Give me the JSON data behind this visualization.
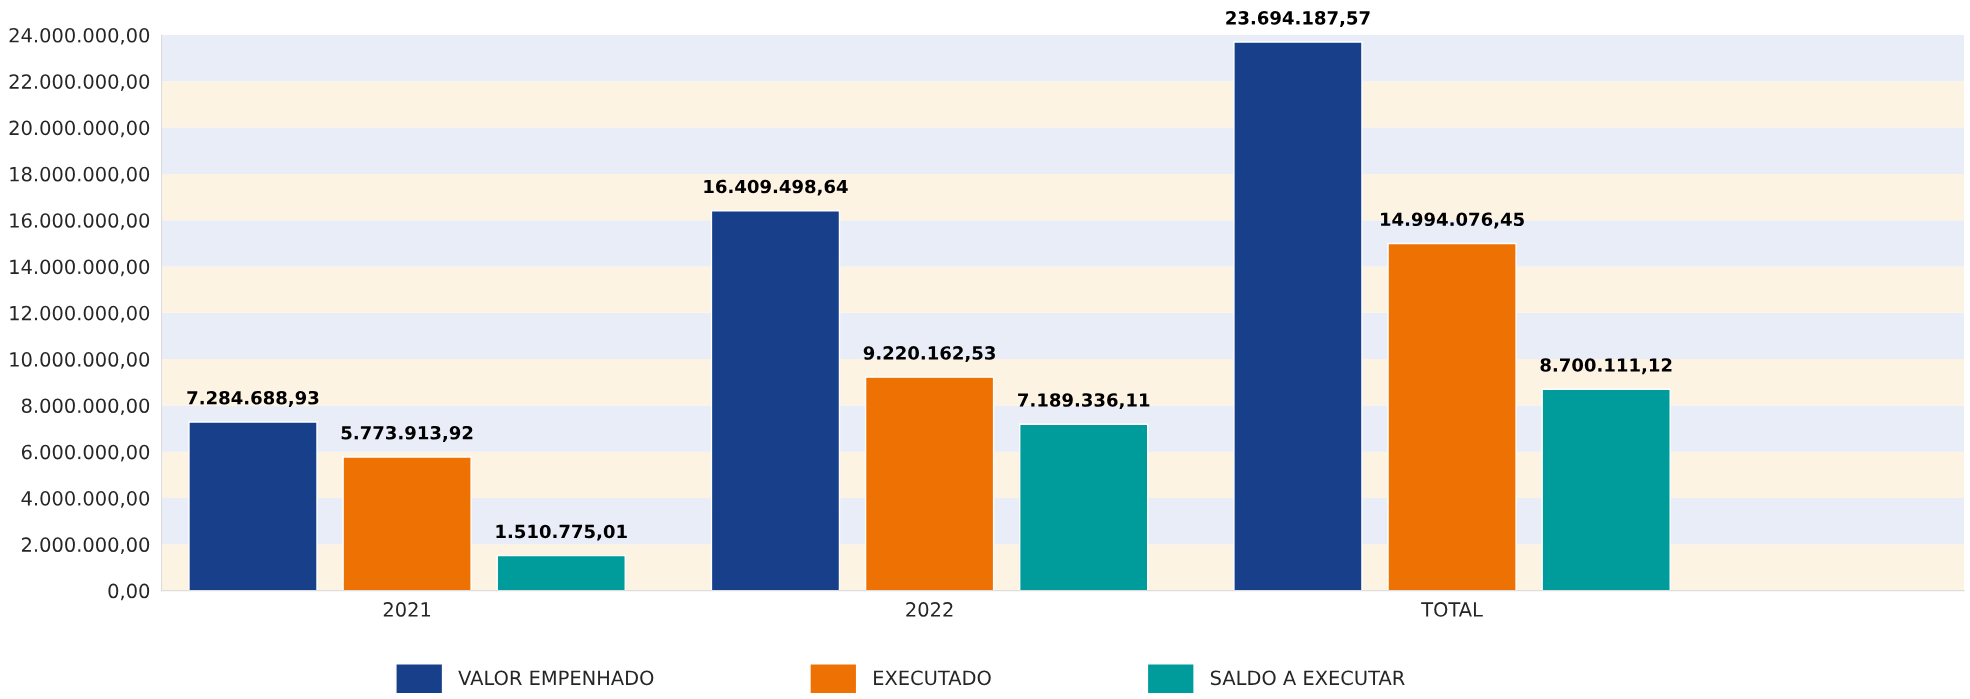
{
  "chart_data": {
    "type": "bar",
    "categories": [
      "2021",
      "2022",
      "TOTAL"
    ],
    "series": [
      {
        "name": "VALOR EMPENHADO",
        "color": "#173f8a",
        "values": [
          7284688.93,
          16409498.64,
          23694187.57
        ],
        "value_labels": [
          "7.284.688,93",
          "16.409.498,64",
          "23.694.187,57"
        ]
      },
      {
        "name": "EXECUTADO",
        "color": "#ee7203",
        "values": [
          5773913.92,
          9220162.53,
          14994076.45
        ],
        "value_labels": [
          "5.773.913,92",
          "9.220.162,53",
          "14.994.076,45"
        ]
      },
      {
        "name": "SALDO A EXECUTAR",
        "color": "#009b9b",
        "values": [
          1510775.01,
          7189336.11,
          8700111.12
        ],
        "value_labels": [
          "1.510.775,01",
          "7.189.336,11",
          "8.700.111,12"
        ]
      }
    ],
    "ylim": [
      0,
      24000000
    ],
    "yticks": [
      {
        "value": 0,
        "label": "0,00"
      },
      {
        "value": 2000000,
        "label": "2.000.000,00"
      },
      {
        "value": 4000000,
        "label": "4.000.000,00"
      },
      {
        "value": 6000000,
        "label": "6.000.000,00"
      },
      {
        "value": 8000000,
        "label": "8.000.000,00"
      },
      {
        "value": 10000000,
        "label": "10.000.000,00"
      },
      {
        "value": 12000000,
        "label": "12.000.000,00"
      },
      {
        "value": 14000000,
        "label": "14.000.000,00"
      },
      {
        "value": 16000000,
        "label": "16.000.000,00"
      },
      {
        "value": 18000000,
        "label": "18.000.000,00"
      },
      {
        "value": 20000000,
        "label": "20.000.000,00"
      },
      {
        "value": 22000000,
        "label": "22.000.000,00"
      },
      {
        "value": 24000000,
        "label": "24.000.000,00"
      }
    ],
    "bands": [
      {
        "axis": "y",
        "from": 0,
        "to": 2000000,
        "color": "#fdf3e3"
      },
      {
        "axis": "y",
        "from": 2000000,
        "to": 4000000,
        "color": "#e8edf8"
      },
      {
        "axis": "y",
        "from": 4000000,
        "to": 6000000,
        "color": "#fdf3e3"
      },
      {
        "axis": "y",
        "from": 6000000,
        "to": 8000000,
        "color": "#e8edf8"
      },
      {
        "axis": "y",
        "from": 8000000,
        "to": 10000000,
        "color": "#fdf3e3"
      },
      {
        "axis": "y",
        "from": 10000000,
        "to": 12000000,
        "color": "#e8edf8"
      },
      {
        "axis": "y",
        "from": 12000000,
        "to": 14000000,
        "color": "#fdf3e3"
      },
      {
        "axis": "y",
        "from": 14000000,
        "to": 16000000,
        "color": "#e8edf8"
      },
      {
        "axis": "y",
        "from": 16000000,
        "to": 18000000,
        "color": "#fdf3e3"
      },
      {
        "axis": "y",
        "from": 18000000,
        "to": 20000000,
        "color": "#e8edf8"
      },
      {
        "axis": "y",
        "from": 20000000,
        "to": 22000000,
        "color": "#fdf3e3"
      },
      {
        "axis": "y",
        "from": 22000000,
        "to": 24000000,
        "color": "#e8edf8"
      }
    ],
    "grid": false,
    "legend": "bottom"
  }
}
